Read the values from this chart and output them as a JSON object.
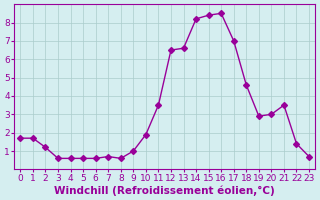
{
  "x": [
    0,
    1,
    2,
    3,
    4,
    5,
    6,
    7,
    8,
    9,
    10,
    11,
    12,
    13,
    14,
    15,
    16,
    17,
    18,
    19,
    20,
    21,
    22,
    23
  ],
  "y": [
    1.7,
    1.7,
    1.2,
    0.6,
    0.6,
    0.6,
    0.6,
    0.7,
    0.6,
    1.0,
    1.9,
    3.5,
    6.5,
    6.6,
    8.2,
    8.4,
    8.5,
    7.0,
    4.6,
    2.9,
    3.0,
    3.5,
    1.4,
    0.7
  ],
  "line_color": "#990099",
  "marker": "D",
  "marker_size": 3,
  "bg_color": "#d5eef0",
  "grid_color": "#aacccc",
  "xlabel": "Windchill (Refroidissement éolien,°C)",
  "xlabel_color": "#990099",
  "tick_color": "#990099",
  "ylim": [
    0,
    9
  ],
  "xlim_min": -0.5,
  "xlim_max": 23.5,
  "yticks": [
    1,
    2,
    3,
    4,
    5,
    6,
    7,
    8
  ],
  "xticks": [
    0,
    1,
    2,
    3,
    4,
    5,
    6,
    7,
    8,
    9,
    10,
    11,
    12,
    13,
    14,
    15,
    16,
    17,
    18,
    19,
    20,
    21,
    22,
    23
  ],
  "tick_fontsize": 6.5,
  "xlabel_fontsize": 7.5
}
